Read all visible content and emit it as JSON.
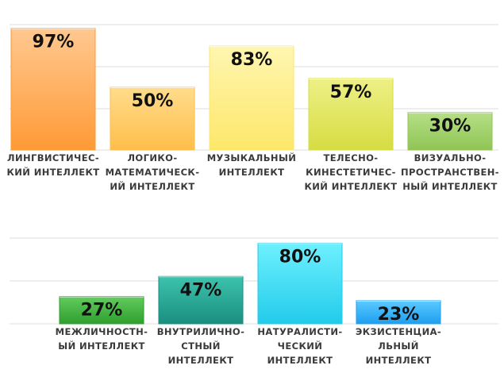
{
  "chart_data": [
    {
      "type": "bar",
      "categories": [
        [
          "ЛИНГВИСТИЧЕС-",
          "КИЙ ИНТЕЛЛЕКТ"
        ],
        [
          "ЛОГИКО-",
          "МАТЕМАТИЧЕСК-",
          "ИЙ ИНТЕЛЛЕКТ"
        ],
        [
          "МУЗЫКАЛЬНЫЙ",
          "ИНТЕЛЛЕКТ"
        ],
        [
          "ТЕЛЕСНО-",
          "КИНЕСТЕТИЧЕС-",
          "КИЙ ИНТЕЛЛЕКТ"
        ],
        [
          "ВИЗУАЛЬНО-",
          "ПРОСТРАНСТВЕН-",
          "НЫЙ ИНТЕЛЛЕКТ"
        ]
      ],
      "values": [
        97,
        50,
        83,
        57,
        30
      ],
      "value_labels": [
        "97%",
        "50%",
        "83%",
        "57%",
        "30%"
      ],
      "bar_colors": [
        [
          "#ffc890",
          "#ff9a36"
        ],
        [
          "#ffdc8c",
          "#ffbe4a"
        ],
        [
          "#fff6b0",
          "#fde76a"
        ],
        [
          "#eef086",
          "#d6dc42"
        ],
        [
          "#b6df86",
          "#8fc555"
        ]
      ],
      "ylim": [
        0,
        100
      ],
      "grid": true
    },
    {
      "type": "bar",
      "categories": [
        [
          "МЕЖЛИЧНОСТН-",
          "ЫЙ ИНТЕЛЛЕКТ"
        ],
        [
          "ВНУТРИЛИЧНО-",
          "СТНЫЙ",
          "ИНТЕЛЛЕКТ"
        ],
        [
          "НАТУРАЛИСТИ-",
          "ЧЕСКИЙ",
          "ИНТЕЛЛЕКТ"
        ],
        [
          "ЭКЗИСТЕНЦИА-",
          "ЛЬНЫЙ",
          "ИНТЕЛЛЕКТ"
        ]
      ],
      "values": [
        27,
        47,
        80,
        23
      ],
      "value_labels": [
        "27%",
        "47%",
        "80%",
        "23%"
      ],
      "bar_colors": [
        [
          "#63cc5f",
          "#2e9f2e"
        ],
        [
          "#3dc3ad",
          "#1a8e80"
        ],
        [
          "#6ef0ff",
          "#22cbea"
        ],
        [
          "#5bcaff",
          "#1f9ff0"
        ]
      ],
      "ylim": [
        0,
        100
      ],
      "grid": true
    }
  ]
}
